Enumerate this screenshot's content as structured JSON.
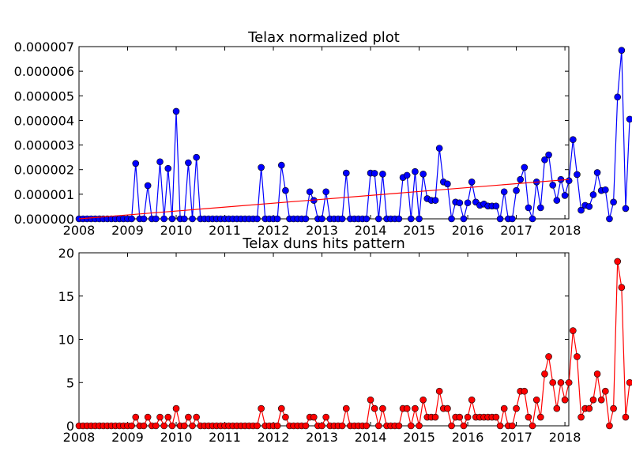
{
  "chart_data": [
    {
      "type": "line",
      "title": "Telax normalized plot",
      "xlabel": "",
      "ylabel": "",
      "x_start_year": 2008,
      "xlim": [
        2008,
        2018.08
      ],
      "ylim": [
        0,
        7e-06
      ],
      "xticks": [
        2008,
        2009,
        2010,
        2011,
        2012,
        2013,
        2014,
        2015,
        2016,
        2017,
        2018
      ],
      "xtick_labels": [
        "2008",
        "2009",
        "2010",
        "2011",
        "2012",
        "2013",
        "2014",
        "2015",
        "2016",
        "2017",
        "2018"
      ],
      "yticks": [
        0,
        1e-06,
        2e-06,
        3e-06,
        4e-06,
        5e-06,
        6e-06,
        7e-06
      ],
      "ytick_labels": [
        "0.000000",
        "0.000001",
        "0.000002",
        "0.000003",
        "0.000004",
        "0.000005",
        "0.000006",
        "0.000007"
      ],
      "grid": false,
      "series": [
        {
          "color": "#0000ff",
          "marker": "circle",
          "values": [
            0,
            0,
            0,
            0,
            0,
            0,
            0,
            0,
            0,
            0,
            0,
            0,
            0,
            0,
            2.25e-06,
            0,
            0,
            1.35e-06,
            0,
            0,
            2.32e-06,
            0,
            2.05e-06,
            0,
            4.37e-06,
            0,
            0,
            2.28e-06,
            0,
            2.5e-06,
            0,
            0,
            0,
            0,
            0,
            0,
            0,
            0,
            0,
            0,
            0,
            0,
            0,
            0,
            0,
            2.09e-06,
            0,
            0,
            0,
            0,
            2.18e-06,
            1.15e-06,
            0,
            0,
            0,
            0,
            0,
            1.1e-06,
            7.5e-07,
            0,
            0,
            1.1e-06,
            0,
            0,
            0,
            0,
            1.86e-06,
            0,
            0,
            0,
            0,
            0,
            1.86e-06,
            1.85e-06,
            0,
            1.82e-06,
            0,
            0,
            0,
            0,
            1.68e-06,
            1.77e-06,
            0,
            1.92e-06,
            0,
            1.82e-06,
            8.2e-07,
            7.5e-07,
            7.5e-07,
            2.87e-06,
            1.5e-06,
            1.42e-06,
            0,
            6.8e-07,
            6.5e-07,
            0,
            6.5e-07,
            1.5e-06,
            6.8e-07,
            5.5e-07,
            6e-07,
            5.2e-07,
            5.2e-07,
            5.2e-07,
            0,
            1.1e-06,
            0,
            0,
            1.15e-06,
            1.6e-06,
            2.09e-06,
            4.5e-07,
            0,
            1.5e-06,
            4.5e-07,
            2.4e-06,
            2.6e-06,
            1.37e-06,
            7.5e-07,
            1.6e-06,
            9.5e-07,
            1.55e-06,
            3.22e-06,
            1.8e-06,
            3.5e-07,
            5.5e-07,
            5e-07,
            9.8e-07,
            1.88e-06,
            1.15e-06,
            1.18e-06,
            0,
            6.8e-07,
            4.95e-06,
            6.85e-06,
            4.2e-07,
            4.05e-06
          ]
        },
        {
          "color": "#ff0000",
          "marker": "none",
          "values": [
            0,
            1.6e-06
          ]
        }
      ]
    },
    {
      "type": "line",
      "title": "Telax duns hits pattern",
      "xlabel": "",
      "ylabel": "",
      "x_start_year": 2008,
      "xlim": [
        2008,
        2018.08
      ],
      "ylim": [
        0,
        20
      ],
      "xticks": [
        2008,
        2009,
        2010,
        2011,
        2012,
        2013,
        2014,
        2015,
        2016,
        2017,
        2018
      ],
      "xtick_labels": [
        "2008",
        "2009",
        "2010",
        "2011",
        "2012",
        "2013",
        "2014",
        "2015",
        "2016",
        "2017",
        "2018"
      ],
      "yticks": [
        0,
        5,
        10,
        15,
        20
      ],
      "ytick_labels": [
        "0",
        "5",
        "10",
        "15",
        "20"
      ],
      "grid": false,
      "series": [
        {
          "color": "#ff0000",
          "marker": "circle",
          "values": [
            0,
            0,
            0,
            0,
            0,
            0,
            0,
            0,
            0,
            0,
            0,
            0,
            0,
            0,
            1,
            0,
            0,
            1,
            0,
            0,
            1,
            0,
            1,
            0,
            2,
            0,
            0,
            1,
            0,
            1,
            0,
            0,
            0,
            0,
            0,
            0,
            0,
            0,
            0,
            0,
            0,
            0,
            0,
            0,
            0,
            2,
            0,
            0,
            0,
            0,
            2,
            1,
            0,
            0,
            0,
            0,
            0,
            1,
            1,
            0,
            0,
            1,
            0,
            0,
            0,
            0,
            2,
            0,
            0,
            0,
            0,
            0,
            3,
            2,
            0,
            2,
            0,
            0,
            0,
            0,
            2,
            2,
            0,
            2,
            0,
            3,
            1,
            1,
            1,
            4,
            2,
            2,
            0,
            1,
            1,
            0,
            1,
            3,
            1,
            1,
            1,
            1,
            1,
            1,
            0,
            2,
            0,
            0,
            2,
            4,
            4,
            1,
            0,
            3,
            1,
            6,
            8,
            5,
            2,
            5,
            3,
            5,
            11,
            8,
            1,
            2,
            2,
            3,
            6,
            3,
            4,
            0,
            2,
            19,
            16,
            1,
            5
          ]
        }
      ]
    }
  ]
}
